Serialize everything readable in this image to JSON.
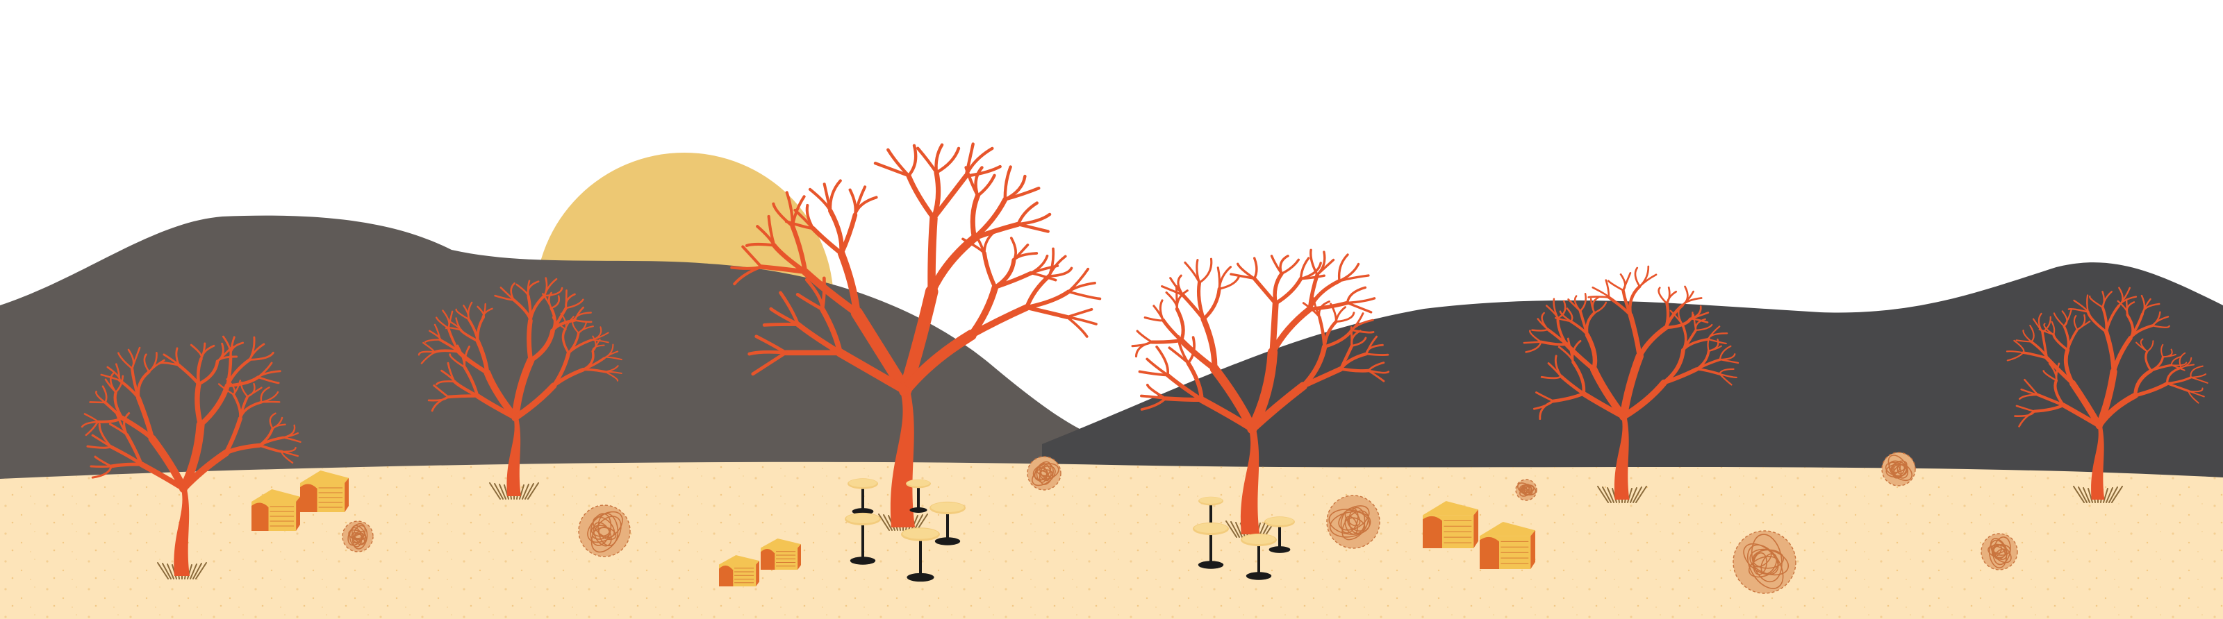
{
  "scene": {
    "description_visible_text": "",
    "colors": {
      "sky": "#ffffff",
      "sun": "#edc873",
      "hill_left": "#5f5a57",
      "hill_right": "#48484a",
      "sand": "#fde4b9",
      "sand_speck": "#f5cf8f",
      "tree": "#e7552b",
      "grass": "#8a6a3a",
      "hay_light": "#f4c453",
      "hay_dark": "#e06a2a",
      "hay_shadow": "#c74a20",
      "tumbleweed": "#e8b17e",
      "tumbleweed_line": "#c9743e",
      "table_top": "#f3cc7d",
      "table_leg": "#1a1a1a"
    },
    "icons": [
      "sun-icon",
      "hill-icon",
      "dead-tree-icon",
      "hay-bale-icon",
      "tumbleweed-icon",
      "bar-table-icon"
    ]
  }
}
